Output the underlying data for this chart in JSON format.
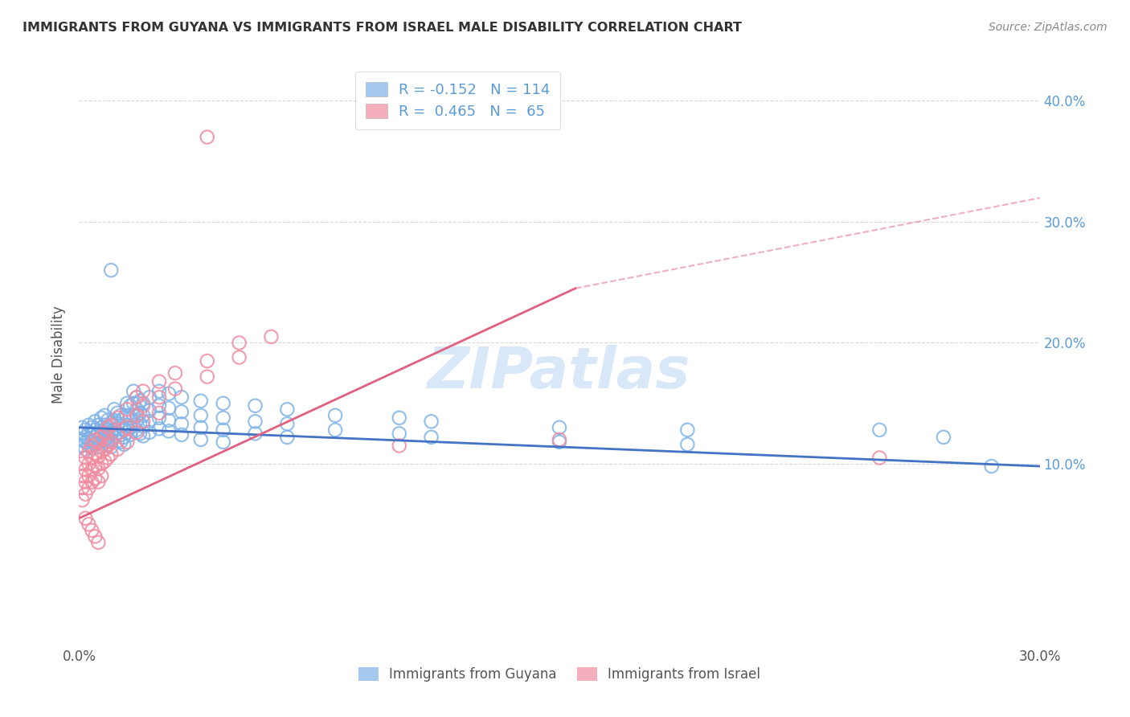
{
  "title": "IMMIGRANTS FROM GUYANA VS IMMIGRANTS FROM ISRAEL MALE DISABILITY CORRELATION CHART",
  "source": "Source: ZipAtlas.com",
  "ylabel": "Male Disability",
  "xlim": [
    0.0,
    0.3
  ],
  "ylim": [
    -0.05,
    0.43
  ],
  "yticks": [
    0.1,
    0.2,
    0.3,
    0.4
  ],
  "ytick_labels": [
    "10.0%",
    "20.0%",
    "30.0%",
    "40.0%"
  ],
  "guyana_color": "#7fb3e8",
  "israel_color": "#f08ca0",
  "guyana_R": -0.152,
  "guyana_N": 114,
  "israel_R": 0.465,
  "israel_N": 65,
  "guyana_line": [
    [
      0.0,
      0.13
    ],
    [
      0.3,
      0.098
    ]
  ],
  "israel_line_solid": [
    [
      0.0,
      0.055
    ],
    [
      0.155,
      0.245
    ]
  ],
  "israel_line_dashed": [
    [
      0.155,
      0.245
    ],
    [
      0.32,
      0.33
    ]
  ],
  "guyana_scatter": [
    [
      0.001,
      0.13
    ],
    [
      0.001,
      0.125
    ],
    [
      0.001,
      0.12
    ],
    [
      0.001,
      0.115
    ],
    [
      0.002,
      0.128
    ],
    [
      0.002,
      0.122
    ],
    [
      0.002,
      0.118
    ],
    [
      0.002,
      0.112
    ],
    [
      0.003,
      0.132
    ],
    [
      0.003,
      0.126
    ],
    [
      0.003,
      0.12
    ],
    [
      0.003,
      0.115
    ],
    [
      0.004,
      0.13
    ],
    [
      0.004,
      0.124
    ],
    [
      0.004,
      0.118
    ],
    [
      0.004,
      0.113
    ],
    [
      0.005,
      0.135
    ],
    [
      0.005,
      0.128
    ],
    [
      0.005,
      0.122
    ],
    [
      0.005,
      0.116
    ],
    [
      0.006,
      0.132
    ],
    [
      0.006,
      0.126
    ],
    [
      0.006,
      0.12
    ],
    [
      0.006,
      0.114
    ],
    [
      0.007,
      0.138
    ],
    [
      0.007,
      0.13
    ],
    [
      0.007,
      0.124
    ],
    [
      0.007,
      0.118
    ],
    [
      0.008,
      0.14
    ],
    [
      0.008,
      0.132
    ],
    [
      0.008,
      0.126
    ],
    [
      0.008,
      0.119
    ],
    [
      0.009,
      0.136
    ],
    [
      0.009,
      0.128
    ],
    [
      0.009,
      0.122
    ],
    [
      0.009,
      0.116
    ],
    [
      0.01,
      0.134
    ],
    [
      0.01,
      0.126
    ],
    [
      0.01,
      0.12
    ],
    [
      0.01,
      0.114
    ],
    [
      0.011,
      0.145
    ],
    [
      0.011,
      0.136
    ],
    [
      0.011,
      0.128
    ],
    [
      0.011,
      0.122
    ],
    [
      0.012,
      0.142
    ],
    [
      0.012,
      0.133
    ],
    [
      0.012,
      0.126
    ],
    [
      0.012,
      0.119
    ],
    [
      0.013,
      0.14
    ],
    [
      0.013,
      0.131
    ],
    [
      0.013,
      0.124
    ],
    [
      0.013,
      0.118
    ],
    [
      0.014,
      0.138
    ],
    [
      0.014,
      0.129
    ],
    [
      0.014,
      0.122
    ],
    [
      0.014,
      0.116
    ],
    [
      0.015,
      0.15
    ],
    [
      0.015,
      0.14
    ],
    [
      0.015,
      0.132
    ],
    [
      0.015,
      0.126
    ],
    [
      0.016,
      0.148
    ],
    [
      0.016,
      0.138
    ],
    [
      0.016,
      0.13
    ],
    [
      0.016,
      0.124
    ],
    [
      0.017,
      0.16
    ],
    [
      0.017,
      0.15
    ],
    [
      0.017,
      0.14
    ],
    [
      0.017,
      0.132
    ],
    [
      0.018,
      0.155
    ],
    [
      0.018,
      0.145
    ],
    [
      0.018,
      0.136
    ],
    [
      0.018,
      0.128
    ],
    [
      0.019,
      0.152
    ],
    [
      0.019,
      0.142
    ],
    [
      0.019,
      0.133
    ],
    [
      0.019,
      0.125
    ],
    [
      0.02,
      0.15
    ],
    [
      0.02,
      0.14
    ],
    [
      0.02,
      0.131
    ],
    [
      0.02,
      0.123
    ],
    [
      0.022,
      0.155
    ],
    [
      0.022,
      0.144
    ],
    [
      0.022,
      0.135
    ],
    [
      0.022,
      0.126
    ],
    [
      0.025,
      0.16
    ],
    [
      0.025,
      0.148
    ],
    [
      0.025,
      0.138
    ],
    [
      0.025,
      0.129
    ],
    [
      0.028,
      0.158
    ],
    [
      0.028,
      0.146
    ],
    [
      0.028,
      0.136
    ],
    [
      0.028,
      0.127
    ],
    [
      0.032,
      0.155
    ],
    [
      0.032,
      0.143
    ],
    [
      0.032,
      0.133
    ],
    [
      0.032,
      0.124
    ],
    [
      0.038,
      0.152
    ],
    [
      0.038,
      0.14
    ],
    [
      0.038,
      0.13
    ],
    [
      0.038,
      0.12
    ],
    [
      0.045,
      0.15
    ],
    [
      0.045,
      0.138
    ],
    [
      0.045,
      0.128
    ],
    [
      0.045,
      0.118
    ],
    [
      0.055,
      0.148
    ],
    [
      0.055,
      0.135
    ],
    [
      0.055,
      0.125
    ],
    [
      0.065,
      0.145
    ],
    [
      0.065,
      0.133
    ],
    [
      0.065,
      0.122
    ],
    [
      0.08,
      0.14
    ],
    [
      0.08,
      0.128
    ],
    [
      0.1,
      0.138
    ],
    [
      0.1,
      0.125
    ],
    [
      0.11,
      0.135
    ],
    [
      0.11,
      0.122
    ],
    [
      0.15,
      0.13
    ],
    [
      0.15,
      0.118
    ],
    [
      0.19,
      0.128
    ],
    [
      0.19,
      0.116
    ],
    [
      0.01,
      0.26
    ],
    [
      0.25,
      0.128
    ],
    [
      0.27,
      0.122
    ],
    [
      0.285,
      0.098
    ]
  ],
  "israel_scatter": [
    [
      0.001,
      0.1
    ],
    [
      0.001,
      0.09
    ],
    [
      0.001,
      0.08
    ],
    [
      0.001,
      0.07
    ],
    [
      0.002,
      0.105
    ],
    [
      0.002,
      0.095
    ],
    [
      0.002,
      0.085
    ],
    [
      0.002,
      0.075
    ],
    [
      0.003,
      0.11
    ],
    [
      0.003,
      0.1
    ],
    [
      0.003,
      0.09
    ],
    [
      0.003,
      0.08
    ],
    [
      0.004,
      0.115
    ],
    [
      0.004,
      0.105
    ],
    [
      0.004,
      0.095
    ],
    [
      0.004,
      0.085
    ],
    [
      0.005,
      0.12
    ],
    [
      0.005,
      0.108
    ],
    [
      0.005,
      0.098
    ],
    [
      0.005,
      0.088
    ],
    [
      0.006,
      0.118
    ],
    [
      0.006,
      0.106
    ],
    [
      0.006,
      0.096
    ],
    [
      0.006,
      0.085
    ],
    [
      0.007,
      0.122
    ],
    [
      0.007,
      0.11
    ],
    [
      0.007,
      0.1
    ],
    [
      0.007,
      0.09
    ],
    [
      0.008,
      0.125
    ],
    [
      0.008,
      0.112
    ],
    [
      0.008,
      0.102
    ],
    [
      0.009,
      0.13
    ],
    [
      0.009,
      0.115
    ],
    [
      0.009,
      0.105
    ],
    [
      0.01,
      0.132
    ],
    [
      0.01,
      0.118
    ],
    [
      0.01,
      0.108
    ],
    [
      0.012,
      0.138
    ],
    [
      0.012,
      0.125
    ],
    [
      0.012,
      0.112
    ],
    [
      0.015,
      0.145
    ],
    [
      0.015,
      0.13
    ],
    [
      0.015,
      0.118
    ],
    [
      0.018,
      0.155
    ],
    [
      0.018,
      0.14
    ],
    [
      0.018,
      0.126
    ],
    [
      0.02,
      0.16
    ],
    [
      0.02,
      0.148
    ],
    [
      0.02,
      0.135
    ],
    [
      0.025,
      0.168
    ],
    [
      0.025,
      0.155
    ],
    [
      0.025,
      0.142
    ],
    [
      0.03,
      0.175
    ],
    [
      0.03,
      0.162
    ],
    [
      0.04,
      0.185
    ],
    [
      0.04,
      0.172
    ],
    [
      0.05,
      0.2
    ],
    [
      0.05,
      0.188
    ],
    [
      0.06,
      0.205
    ],
    [
      0.002,
      0.055
    ],
    [
      0.003,
      0.05
    ],
    [
      0.004,
      0.045
    ],
    [
      0.005,
      0.04
    ],
    [
      0.006,
      0.035
    ],
    [
      0.1,
      0.115
    ],
    [
      0.15,
      0.12
    ],
    [
      0.25,
      0.105
    ],
    [
      0.04,
      0.37
    ]
  ],
  "watermark_text": "ZIPatlas",
  "watermark_color": "#d8e8f8",
  "bg_color": "#ffffff",
  "grid_color": "#d8d8d8",
  "grid_style": "--"
}
